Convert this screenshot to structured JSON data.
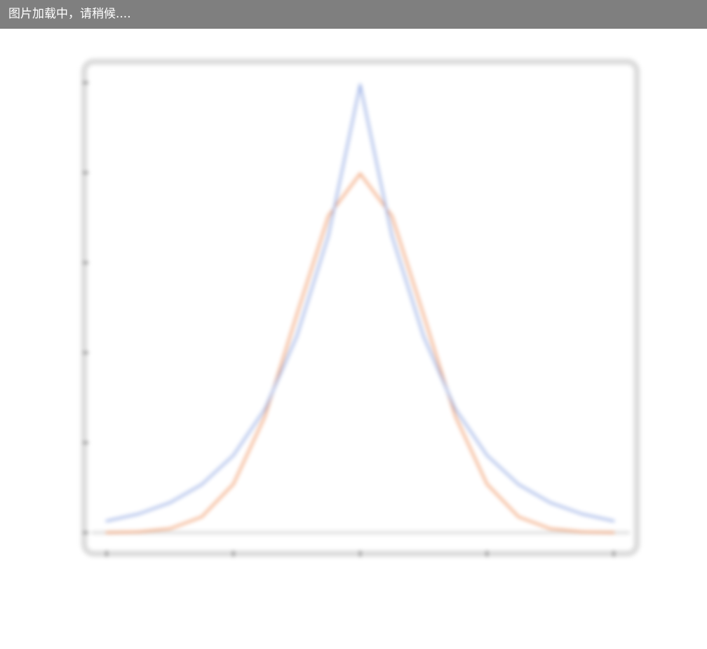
{
  "loading_banner": {
    "text": "图片加载中，请稍候...."
  },
  "chart_data": {
    "type": "line",
    "title": "",
    "xlabel": "",
    "ylabel": "",
    "xlim": [
      -4,
      4
    ],
    "ylim": [
      0,
      0.5
    ],
    "grid": false,
    "xticks": [
      -4,
      -2,
      0,
      2,
      4
    ],
    "xtick_labels": [
      "",
      "",
      "",
      "",
      ""
    ],
    "yticks": [
      0,
      0.1,
      0.2,
      0.3,
      0.4,
      0.5
    ],
    "ytick_labels": [
      "",
      "",
      "",
      "",
      "",
      ""
    ],
    "x": [
      -4,
      -3.5,
      -3,
      -2.5,
      -2,
      -1.5,
      -1,
      -0.5,
      0,
      0.5,
      1,
      1.5,
      2,
      2.5,
      3,
      3.5,
      4
    ],
    "series": [
      {
        "color": "#f2a57a",
        "values": [
          0.0001,
          0.0009,
          0.0044,
          0.0175,
          0.054,
          0.1295,
          0.242,
          0.352,
          0.3989,
          0.352,
          0.242,
          0.1295,
          0.054,
          0.0175,
          0.0044,
          0.0009,
          0.0001
        ]
      },
      {
        "color": "#9fb3e6",
        "values": [
          0.0129,
          0.0207,
          0.0333,
          0.0535,
          0.0859,
          0.1376,
          0.2181,
          0.3301,
          0.4978,
          0.3301,
          0.2181,
          0.1376,
          0.0859,
          0.0535,
          0.0333,
          0.0207,
          0.0129
        ]
      }
    ]
  }
}
